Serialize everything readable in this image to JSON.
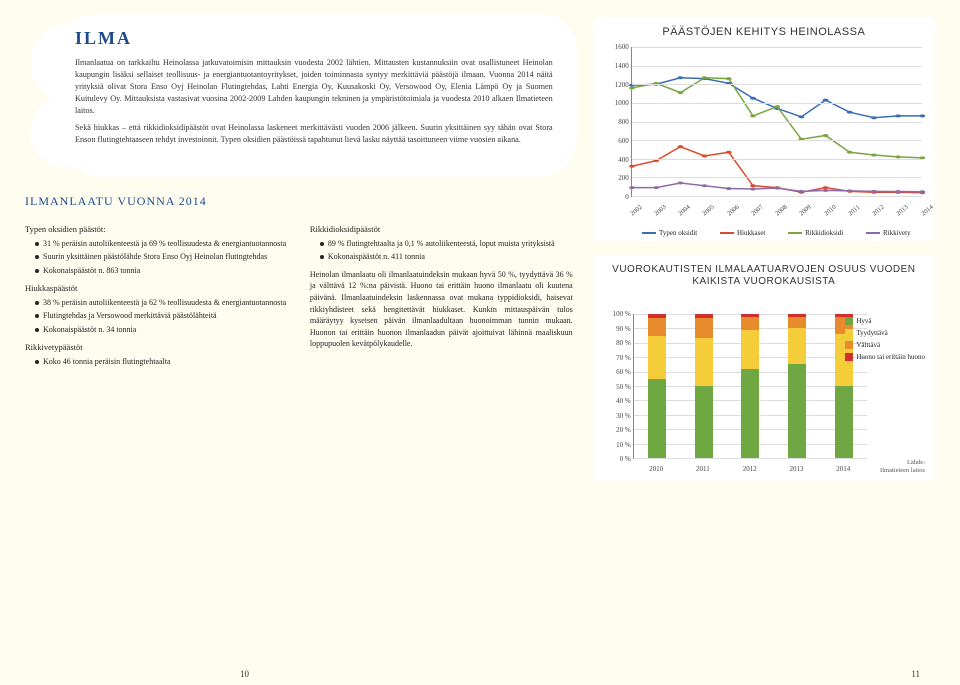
{
  "title": "ILMA",
  "intro": [
    "Ilmanlaatua on tarkkailtu Heinolassa jatkuvatoimisin mittauksin vuodesta 2002 lähtien. Mittausten kustannuksiin ovat osallistuneet Heinolan kaupungin lisäksi sellaiset teollisuus- ja energiantuotantoyritykset, joiden toiminnasta syntyy merkittäviä päästöjä ilmaan. Vuonna 2014 näitä yrityksiä olivat Stora Enso Oyj Heinolan Flutingtehdas, Lahti Energia Oy, Kuusakoski Oy, Versowood Oy, Elenia Lämpö Oy ja Suomen Kuitulevy Oy. Mittauksista vastasivat vuosina 2002-2009 Lahden kaupungin tekninen ja ympäristötoimiala ja vuodesta 2010 alkaen Ilmatieteen laitos.",
    "Sekä hiukkas – että rikkidioksidipäästöt ovat Heinolassa laskeneet merkittävästi vuoden 2006 jälkeen. Suurin yksittäinen syy tähän ovat Stora Enson flutingtehtaaseen tehdyt investoinnit. Typen oksidien päästöissä tapahtunut lievä lasku näyttää tasoittuneen viime vuosien aikana."
  ],
  "section_heading": "ILMANLAATU VUONNA 2014",
  "col1": {
    "h1": "Typen oksidien päästöt:",
    "l1": [
      "31 % peräisin autoliikenteestä ja 69 % teollisuudesta & energiantuotannosta",
      "Suurin yksittäinen päästölähde Stora Enso Oyj Heinolan flutingtehdas",
      "Kokonaispäästöt n. 863 tonnia"
    ],
    "h2": "Hiukkaspäästöt",
    "l2": [
      "38 % peräisin autoliikenteestä ja 62 % teollisuudesta & energiantuotannosta",
      "Flutingtehdas ja Versowood merkittäviä päästölähteitä",
      "Kokonaispäästöt n. 34 tonnia"
    ],
    "h3": "Rikkivetypäästöt",
    "l3": [
      "Koko 46 tonnia peräisin flutingtehtaalta"
    ]
  },
  "col2": {
    "h1": "Rikkidioksidipäästöt",
    "l1": [
      "89 % flutingtehtaalta ja 0,1 % autoliikenteestä, loput muista yrityksistä",
      "Kokonaispäästöt n. 411 tonnia"
    ],
    "p": "Heinolan ilmanlaatu oli ilmanlaatuindeksin mukaan hyvä 50 %, tyydyttävä 36 % ja välttävä 12 %:na päivistä. Huono tai erittäin huono ilmanlaatu oli kuutena päivänä. Ilmanlaatuindeksin laskennassa ovat mukana typpidioksidi, haisevat rikkiyhdisteet sekä hengitettävät hiukkaset. Kunkin mittauspäivän tulos määräytyy kyseisen päivän ilmanlaadultaan huonoimman tunnin mukaan. Huonon tai erittäin huonon ilmanlaadun päivät ajoittuivat lähinnä maaliskuun loppupuolen kevätpölykaudelle."
  },
  "line_chart": {
    "title": "PÄÄSTÖJEN KEHITYS HEINOLASSA",
    "ylim": [
      0,
      1600
    ],
    "ytick_step": 200,
    "years": [
      "2002",
      "2003",
      "2004",
      "2005",
      "2006",
      "2007",
      "2008",
      "2009",
      "2010",
      "2011",
      "2012",
      "2013",
      "2014"
    ],
    "series": [
      {
        "name": "Typen oksidit",
        "color": "#3a6db5",
        "values": [
          1190,
          1200,
          1270,
          1260,
          1210,
          1050,
          940,
          850,
          1030,
          900,
          840,
          860,
          860
        ]
      },
      {
        "name": "Hiukkaset",
        "color": "#d94b2b",
        "values": [
          320,
          380,
          530,
          430,
          470,
          110,
          90,
          40,
          90,
          50,
          40,
          40,
          35
        ]
      },
      {
        "name": "Rikkidioksidi",
        "color": "#7aa640",
        "values": [
          1160,
          1210,
          1110,
          1270,
          1260,
          860,
          960,
          610,
          650,
          470,
          440,
          420,
          410
        ]
      },
      {
        "name": "Rikkivety",
        "color": "#8e6aa8",
        "values": [
          90,
          90,
          140,
          110,
          80,
          75,
          85,
          50,
          60,
          55,
          50,
          48,
          46
        ]
      }
    ]
  },
  "bar_chart": {
    "title": "VUOROKAUTISTEN ILMALAATUARVOJEN OSUUS VUODEN KAIKISTA VUOROKAUSISTA",
    "years": [
      "2010",
      "2011",
      "2012",
      "2013",
      "2014"
    ],
    "legend": [
      {
        "name": "Hyvä",
        "color": "#6fa843"
      },
      {
        "name": "Tyydyttävä",
        "color": "#f5cc3a"
      },
      {
        "name": "Välttävä",
        "color": "#e88b2d"
      },
      {
        "name": "Huono tai erittäin huono",
        "color": "#d22e2e"
      }
    ],
    "stacks": [
      [
        55,
        30,
        12,
        3
      ],
      [
        50,
        33,
        14,
        3
      ],
      [
        62,
        27,
        9,
        2
      ],
      [
        65,
        25,
        8,
        2
      ],
      [
        50,
        36,
        12,
        2
      ]
    ],
    "source_label": "Lähde:",
    "source": "Ilmatieteen laitos"
  },
  "pagenum_left": "10",
  "pagenum_right": "11"
}
